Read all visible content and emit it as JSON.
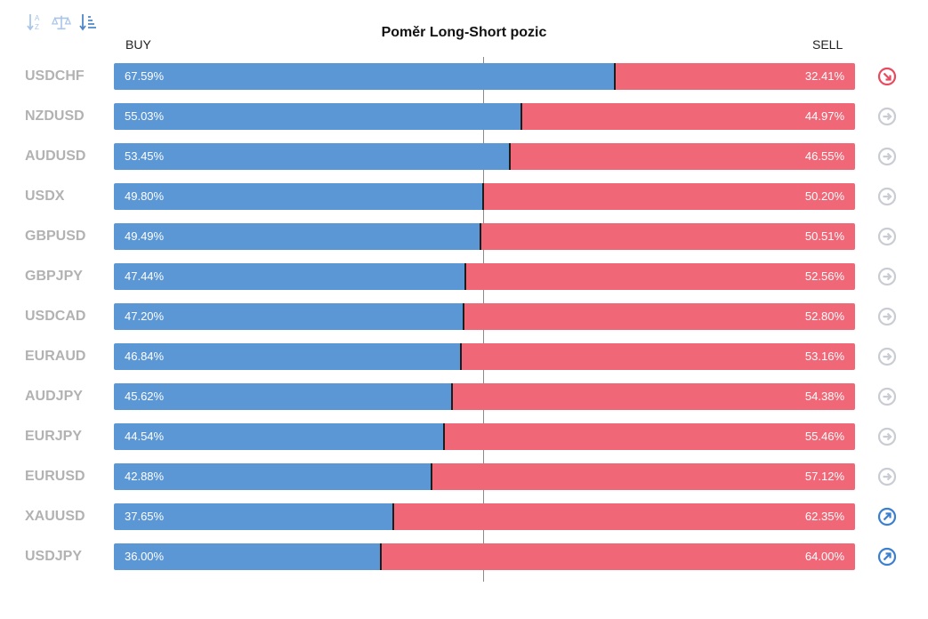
{
  "toolbar": {
    "buttons": [
      {
        "name": "sort-alpha-icon"
      },
      {
        "name": "balance-icon"
      },
      {
        "name": "sort-amount-icon"
      }
    ]
  },
  "colors": {
    "buy": "#5b96d5",
    "sell": "#f06877",
    "symbol": "#b2b2b2",
    "neutral_icon": "#c9ccd2",
    "bearish_icon": "#e84a5f",
    "bullish_icon": "#3a7fd0"
  },
  "chart_data": {
    "type": "bar",
    "stacked": true,
    "orientation": "horizontal",
    "title": "Poměr Long-Short pozic",
    "left_label": "BUY",
    "right_label": "SELL",
    "xlim": [
      0,
      100
    ],
    "center_line": 50,
    "rows": [
      {
        "symbol": "USDCHF",
        "buy": 67.59,
        "sell": 32.41,
        "buy_label": "67.59%",
        "sell_label": "32.41%",
        "signal": "down",
        "signal_icon": "arrow-down-right-icon"
      },
      {
        "symbol": "NZDUSD",
        "buy": 55.03,
        "sell": 44.97,
        "buy_label": "55.03%",
        "sell_label": "44.97%",
        "signal": "neutral",
        "signal_icon": "arrow-right-icon"
      },
      {
        "symbol": "AUDUSD",
        "buy": 53.45,
        "sell": 46.55,
        "buy_label": "53.45%",
        "sell_label": "46.55%",
        "signal": "neutral",
        "signal_icon": "arrow-right-icon"
      },
      {
        "symbol": "USDX",
        "buy": 49.8,
        "sell": 50.2,
        "buy_label": "49.80%",
        "sell_label": "50.20%",
        "signal": "neutral",
        "signal_icon": "arrow-right-icon"
      },
      {
        "symbol": "GBPUSD",
        "buy": 49.49,
        "sell": 50.51,
        "buy_label": "49.49%",
        "sell_label": "50.51%",
        "signal": "neutral",
        "signal_icon": "arrow-right-icon"
      },
      {
        "symbol": "GBPJPY",
        "buy": 47.44,
        "sell": 52.56,
        "buy_label": "47.44%",
        "sell_label": "52.56%",
        "signal": "neutral",
        "signal_icon": "arrow-right-icon"
      },
      {
        "symbol": "USDCAD",
        "buy": 47.2,
        "sell": 52.8,
        "buy_label": "47.20%",
        "sell_label": "52.80%",
        "signal": "neutral",
        "signal_icon": "arrow-right-icon"
      },
      {
        "symbol": "EURAUD",
        "buy": 46.84,
        "sell": 53.16,
        "buy_label": "46.84%",
        "sell_label": "53.16%",
        "signal": "neutral",
        "signal_icon": "arrow-right-icon"
      },
      {
        "symbol": "AUDJPY",
        "buy": 45.62,
        "sell": 54.38,
        "buy_label": "45.62%",
        "sell_label": "54.38%",
        "signal": "neutral",
        "signal_icon": "arrow-right-icon"
      },
      {
        "symbol": "EURJPY",
        "buy": 44.54,
        "sell": 55.46,
        "buy_label": "44.54%",
        "sell_label": "55.46%",
        "signal": "neutral",
        "signal_icon": "arrow-right-icon"
      },
      {
        "symbol": "EURUSD",
        "buy": 42.88,
        "sell": 57.12,
        "buy_label": "42.88%",
        "sell_label": "57.12%",
        "signal": "neutral",
        "signal_icon": "arrow-right-icon"
      },
      {
        "symbol": "XAUUSD",
        "buy": 37.65,
        "sell": 62.35,
        "buy_label": "37.65%",
        "sell_label": "62.35%",
        "signal": "up",
        "signal_icon": "arrow-up-right-icon"
      },
      {
        "symbol": "USDJPY",
        "buy": 36.0,
        "sell": 64.0,
        "buy_label": "36.00%",
        "sell_label": "64.00%",
        "signal": "up",
        "signal_icon": "arrow-up-right-icon"
      }
    ]
  }
}
